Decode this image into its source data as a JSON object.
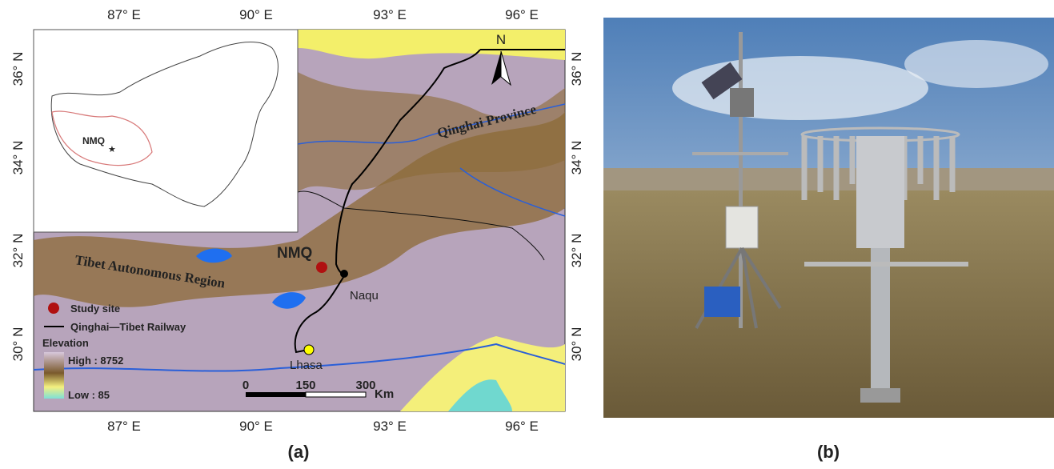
{
  "panel_a": {
    "longitude_labels": [
      "87° E",
      "90° E",
      "93° E",
      "96° E"
    ],
    "latitude_labels": [
      "36° N",
      "34° N",
      "32° N",
      "30° N"
    ],
    "inset_label": "NMQ",
    "north_arrow": "N",
    "region_labels": [
      "Qinghai Province",
      "Tibet Autonomous Region"
    ],
    "site_label": "NMQ",
    "city_labels": [
      "Naqu",
      "Lhasa"
    ],
    "legend": {
      "study_site": "Study site",
      "railway": "Qinghai—Tibet Railway",
      "elevation_title": "Elevation",
      "high": "High : 8752",
      "low": "Low : 85"
    },
    "scale_bar": {
      "ticks": [
        0,
        150,
        300
      ],
      "unit": "Km"
    },
    "caption": "(a)"
  },
  "panel_b": {
    "caption": "(b)"
  }
}
